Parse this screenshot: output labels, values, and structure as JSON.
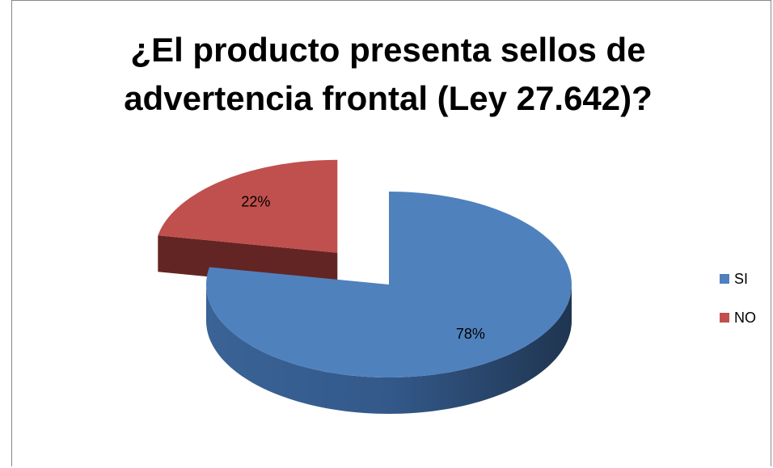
{
  "chart_data": {
    "type": "pie",
    "title": "¿El producto presenta sellos de advertencia frontal (Ley 27.642)?",
    "categories": [
      "SI",
      "NO"
    ],
    "values": [
      78,
      22
    ],
    "value_labels": [
      "78%",
      "22%"
    ],
    "colors": [
      "#4f81bd",
      "#c0504d"
    ],
    "legend": "right"
  }
}
